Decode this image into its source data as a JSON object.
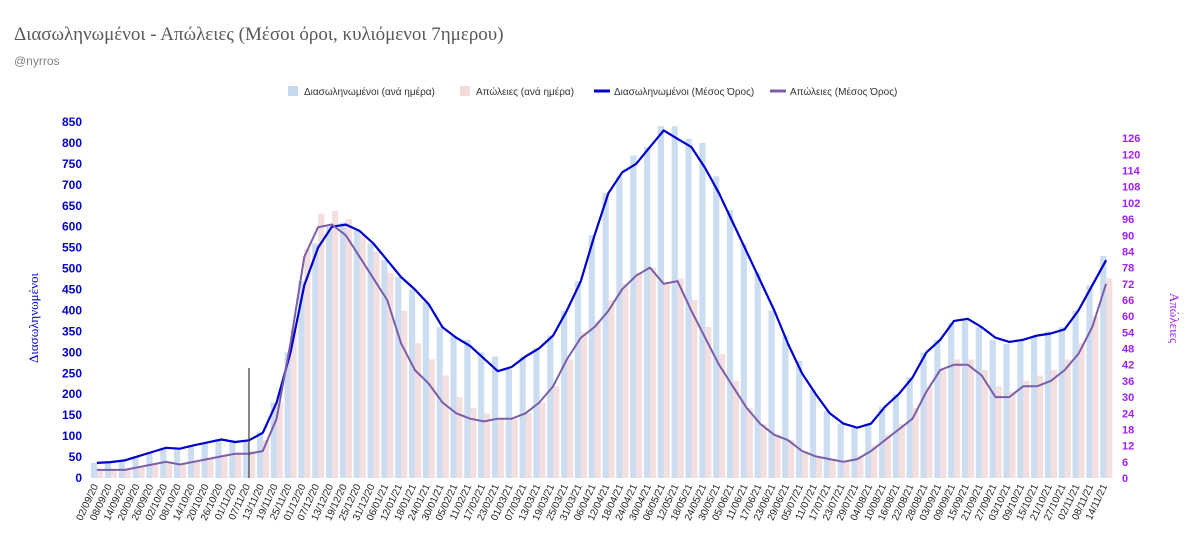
{
  "chart_data": {
    "type": "bar+line",
    "title": "Διασωληνωμένοι - Απώλειες (Μέσοι όροι, κυλιόμενοι 7ημερου)",
    "subtitle": "@nyrros",
    "ylabel_left": "Διασωληνωμένοι",
    "ylabel_right": "Απώλειες",
    "ylim_left": [
      0,
      850
    ],
    "ylim_right": [
      0,
      126
    ],
    "yticks_left": [
      0,
      50,
      100,
      150,
      200,
      250,
      300,
      350,
      400,
      450,
      500,
      550,
      600,
      650,
      700,
      750,
      800,
      850
    ],
    "yticks_right": [
      0,
      6,
      12,
      18,
      24,
      30,
      36,
      42,
      48,
      54,
      60,
      66,
      72,
      78,
      84,
      90,
      96,
      102,
      108,
      114,
      120,
      126
    ],
    "x_labels": [
      "02/09/20",
      "08/09/20",
      "14/09/20",
      "20/09/20",
      "26/09/20",
      "02/10/20",
      "08/10/20",
      "14/10/20",
      "20/10/20",
      "26/10/20",
      "01/11/20",
      "07/11/20",
      "13/11/20",
      "19/11/20",
      "25/11/20",
      "01/12/20",
      "07/12/20",
      "13/12/20",
      "19/12/20",
      "25/12/20",
      "31/12/20",
      "06/01/21",
      "12/01/21",
      "18/01/21",
      "24/01/21",
      "30/01/21",
      "05/02/21",
      "11/02/21",
      "17/02/21",
      "23/02/21",
      "01/03/21",
      "07/03/21",
      "13/03/21",
      "19/03/21",
      "25/03/21",
      "31/03/21",
      "06/04/21",
      "12/04/21",
      "18/04/21",
      "24/04/21",
      "30/04/21",
      "06/05/21",
      "12/05/21",
      "18/05/21",
      "24/05/21",
      "30/05/21",
      "05/06/21",
      "11/06/21",
      "17/06/21",
      "23/06/21",
      "29/06/21",
      "05/07/21",
      "11/07/21",
      "17/07/21",
      "23/07/21",
      "29/07/21",
      "04/08/21",
      "10/08/21",
      "16/08/21",
      "22/08/21",
      "28/08/21",
      "03/09/21",
      "09/09/21",
      "15/09/21",
      "21/09/21",
      "27/09/21",
      "03/10/21",
      "09/10/21",
      "15/10/21",
      "21/10/21",
      "27/10/21",
      "02/11/21",
      "08/11/21",
      "14/11/21"
    ],
    "series": [
      {
        "name": "Διασωληνωμένοι (ανά ημέρα)",
        "type": "bar",
        "axis": "left",
        "color": "#c6d9f1",
        "values": [
          36,
          38,
          42,
          52,
          62,
          72,
          70,
          78,
          85,
          92,
          85,
          90,
          110,
          180,
          300,
          470,
          560,
          600,
          610,
          590,
          560,
          520,
          480,
          450,
          420,
          360,
          340,
          330,
          300,
          290,
          260,
          290,
          310,
          340,
          400,
          470,
          580,
          680,
          720,
          770,
          790,
          840,
          840,
          810,
          800,
          720,
          640,
          560,
          490,
          400,
          340,
          280,
          210,
          160,
          130,
          120,
          130,
          170,
          200,
          240,
          300,
          330,
          370,
          380,
          360,
          330,
          320,
          330,
          340,
          350,
          360,
          400,
          460,
          530
        ]
      },
      {
        "name": "Απώλειες (ανά ημέρα)",
        "type": "bar",
        "axis": "right",
        "color": "#f2dcdb",
        "values": [
          3,
          3,
          3,
          4,
          5,
          6,
          5,
          6,
          7,
          8,
          9,
          10,
          14,
          28,
          55,
          85,
          98,
          99,
          96,
          90,
          84,
          76,
          62,
          50,
          44,
          38,
          30,
          26,
          24,
          22,
          22,
          24,
          28,
          34,
          44,
          54,
          58,
          66,
          72,
          76,
          78,
          72,
          74,
          66,
          56,
          46,
          36,
          26,
          20,
          16,
          14,
          10,
          8,
          7,
          6,
          8,
          12,
          16,
          20,
          26,
          34,
          40,
          44,
          44,
          40,
          34,
          32,
          36,
          38,
          40,
          44,
          50,
          60,
          74
        ]
      },
      {
        "name": "Διασωληνωμένοι (Μέσος Όρος)",
        "type": "line",
        "axis": "left",
        "color": "#0000cc",
        "values": [
          36,
          38,
          42,
          52,
          62,
          72,
          70,
          78,
          85,
          92,
          86,
          90,
          108,
          180,
          300,
          460,
          550,
          600,
          605,
          590,
          560,
          520,
          480,
          450,
          415,
          360,
          335,
          315,
          285,
          255,
          265,
          290,
          310,
          340,
          400,
          470,
          580,
          680,
          730,
          750,
          790,
          830,
          810,
          790,
          740,
          680,
          610,
          540,
          470,
          400,
          320,
          250,
          200,
          155,
          130,
          120,
          130,
          170,
          200,
          240,
          300,
          330,
          375,
          380,
          360,
          335,
          325,
          330,
          340,
          345,
          355,
          400,
          460,
          520
        ]
      },
      {
        "name": "Απώλειες (Μέσος Όρος)",
        "type": "line",
        "axis": "right",
        "color": "#7b5ea7",
        "values": [
          3,
          3,
          3,
          4,
          5,
          6,
          5,
          6,
          7,
          8,
          9,
          9,
          10,
          22,
          50,
          82,
          93,
          94,
          90,
          82,
          74,
          66,
          50,
          40,
          35,
          28,
          24,
          22,
          21,
          22,
          22,
          24,
          28,
          34,
          44,
          52,
          56,
          62,
          70,
          75,
          78,
          72,
          73,
          62,
          52,
          42,
          34,
          26,
          20,
          16,
          14,
          10,
          8,
          7,
          6,
          7,
          10,
          14,
          18,
          22,
          32,
          40,
          42,
          42,
          38,
          30,
          30,
          34,
          34,
          36,
          40,
          46,
          56,
          72
        ]
      }
    ]
  }
}
